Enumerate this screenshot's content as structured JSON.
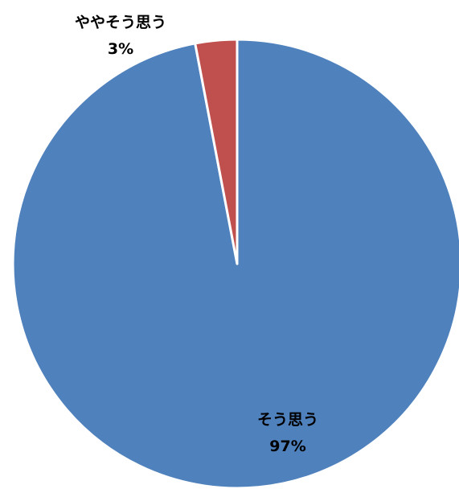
{
  "chart_data": {
    "type": "pie",
    "slices": [
      {
        "label": "そう思う",
        "value": 97,
        "value_label": "97%",
        "color": "#4F81BD"
      },
      {
        "label": "ややそう思う",
        "value": 3,
        "value_label": "3%",
        "color": "#C0504D"
      }
    ],
    "start_angle": "12 o'clock",
    "direction": "clockwise",
    "slice_border_color": "#FFFFFF",
    "legend": "none",
    "data_labels": "category name and percentage"
  }
}
